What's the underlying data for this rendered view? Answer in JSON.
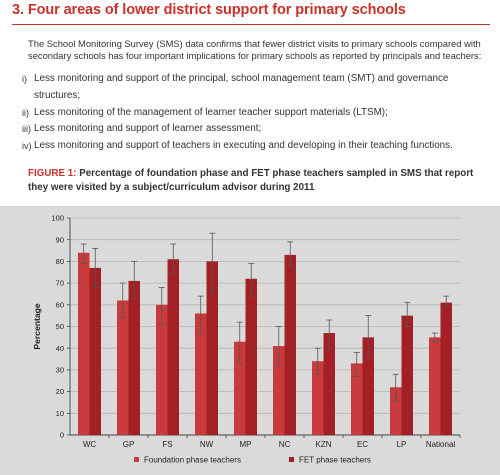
{
  "section": {
    "title": "3.  Four areas of lower district support for primary schools"
  },
  "intro": "The School Monitoring Survey (SMS) data confirms that fewer district visits to primary schools compared with secondary schools has four important implications for primary schools as reported by principals and teachers:",
  "implications": [
    {
      "num": "i)",
      "text": "Less monitoring and support of the principal, school management team (SMT) and governance structures;"
    },
    {
      "num": "ii)",
      "text": "Less monitoring of the management of learner teacher support materials (LTSM);"
    },
    {
      "num": "iii)",
      "text": "Less monitoring and support of learner assessment;"
    },
    {
      "num": "iv)",
      "text": "Less monitoring and support of teachers in executing and developing in their teaching functions."
    }
  ],
  "figure": {
    "label": "FIGURE 1:",
    "caption": "Percentage of foundation phase and FET phase teachers sampled in SMS that report they were visited by a subject/curriculum advisor during 2011"
  },
  "colors": {
    "foundation": "#c93a3c",
    "fet": "#a32024",
    "panel": "#dadada",
    "title": "#c8322d"
  },
  "chart_data": {
    "type": "bar",
    "ylabel": "Percentage",
    "ylim": [
      0,
      100
    ],
    "yticks": [
      "0",
      "10",
      "20",
      "30",
      "40",
      "50",
      "60",
      "70",
      "80",
      "90",
      "100"
    ],
    "grid": true,
    "legend_position": "bottom",
    "error_bars": true,
    "categories": [
      "WC",
      "GP",
      "FS",
      "NW",
      "MP",
      "NC",
      "KZN",
      "EC",
      "LP",
      "National"
    ],
    "series": [
      {
        "name": "Foundation phase teachers",
        "values": [
          84,
          62,
          60,
          56,
          43,
          41,
          34,
          33,
          22,
          45
        ],
        "err_low": [
          79,
          54,
          51,
          47,
          33,
          32,
          28,
          27,
          16,
          43
        ],
        "err_high": [
          88,
          70,
          68,
          64,
          52,
          50,
          40,
          38,
          28,
          47
        ]
      },
      {
        "name": "FET phase teachers",
        "values": [
          77,
          71,
          81,
          80,
          72,
          83,
          47,
          45,
          55,
          61
        ],
        "err_low": [
          68,
          63,
          75,
          66,
          64,
          78,
          40,
          35,
          50,
          59
        ],
        "err_high": [
          86,
          80,
          88,
          93,
          79,
          89,
          53,
          55,
          61,
          64
        ]
      }
    ]
  }
}
